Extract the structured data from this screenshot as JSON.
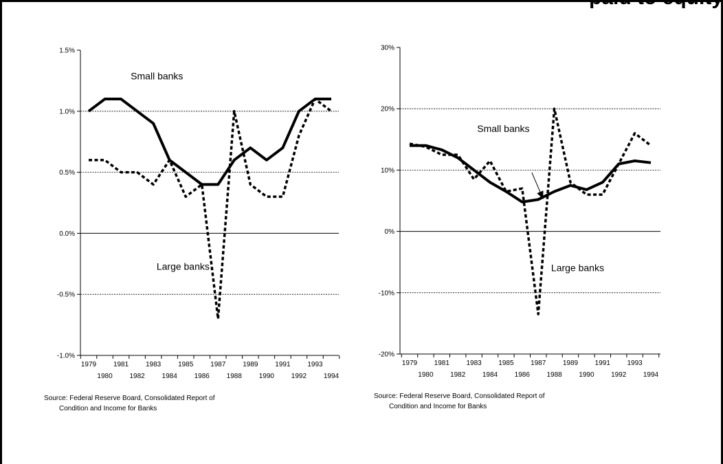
{
  "cut_title": "paid to equity",
  "source_note": {
    "line1": "Source: Federal Reserve Board, Consolidated Report of",
    "line2": "Condition and Income for Banks"
  },
  "chart_data": [
    {
      "type": "line",
      "title": "",
      "xlabel": "",
      "ylabel": "",
      "ylim": [
        -1.0,
        1.5
      ],
      "y_ticks": [
        "-1.0%",
        "-0.5%",
        "0.0%",
        "0.5%",
        "1.0%",
        "1.5%"
      ],
      "y_tick_values": [
        -1.0,
        -0.5,
        0.0,
        0.5,
        1.0,
        1.5
      ],
      "gridlines": {
        "dashed_at": [
          -0.5,
          0.5,
          1.0
        ],
        "solid_at": [
          0.0
        ]
      },
      "x": [
        1979,
        1980,
        1981,
        1982,
        1983,
        1984,
        1985,
        1986,
        1987,
        1988,
        1989,
        1990,
        1991,
        1992,
        1993,
        1994
      ],
      "x_labels_top": [
        "1979",
        "1981",
        "1983",
        "1985",
        "1987",
        "1989",
        "1991",
        "1993"
      ],
      "x_labels_bottom": [
        "1980",
        "1982",
        "1984",
        "1986",
        "1988",
        "1990",
        "1992",
        "1994"
      ],
      "series": [
        {
          "name": "Small banks",
          "style": "solid",
          "values": [
            1.0,
            1.1,
            1.1,
            1.0,
            0.9,
            0.6,
            0.5,
            0.4,
            0.4,
            0.6,
            0.7,
            0.6,
            0.7,
            1.0,
            1.1,
            1.1
          ]
        },
        {
          "name": "Large banks",
          "style": "dotted",
          "values": [
            0.6,
            0.6,
            0.5,
            0.5,
            0.4,
            0.6,
            0.3,
            0.4,
            -0.7,
            1.0,
            0.4,
            0.3,
            0.3,
            0.8,
            1.1,
            1.0
          ]
        }
      ],
      "labels": [
        {
          "text": "Small banks",
          "x": 1981.6,
          "y": 1.26
        },
        {
          "text": "Large banks",
          "x": 1983.2,
          "y": -0.3
        }
      ]
    },
    {
      "type": "line",
      "title": "",
      "xlabel": "",
      "ylabel": "",
      "ylim": [
        -20,
        30
      ],
      "y_ticks": [
        "-20%",
        "-10%",
        "0%",
        "10%",
        "20%",
        "30%"
      ],
      "y_tick_values": [
        -20,
        -10,
        0,
        10,
        20,
        30
      ],
      "gridlines": {
        "dashed_at": [
          -10,
          10,
          20
        ],
        "solid_at": [
          0
        ]
      },
      "x": [
        1979,
        1980,
        1981,
        1982,
        1983,
        1984,
        1985,
        1986,
        1987,
        1988,
        1989,
        1990,
        1991,
        1992,
        1993,
        1994
      ],
      "x_labels_top": [
        "1979",
        "1981",
        "1983",
        "1985",
        "1987",
        "1989",
        "1991",
        "1993"
      ],
      "x_labels_bottom": [
        "1980",
        "1982",
        "1984",
        "1986",
        "1988",
        "1990",
        "1992",
        "1994"
      ],
      "series": [
        {
          "name": "Small banks",
          "style": "solid",
          "values": [
            14,
            14,
            13.3,
            12,
            10,
            8,
            6.5,
            4.8,
            5.2,
            6.5,
            7.5,
            6.8,
            8,
            11,
            11.5,
            11.2
          ]
        },
        {
          "name": "Large banks",
          "style": "dotted",
          "values": [
            14.3,
            13.8,
            12.5,
            12.5,
            8.5,
            11.5,
            6.5,
            7,
            -13.5,
            20,
            8,
            6,
            6,
            11,
            16,
            14
          ]
        }
      ],
      "labels": [
        {
          "text": "Small banks",
          "x": 1983.2,
          "y": 16.2
        },
        {
          "text": "Large banks",
          "x": 1987.8,
          "y": -6.5
        }
      ],
      "annotation": {
        "type": "arrow",
        "from": [
          1986.6,
          9.6
        ],
        "to": [
          1987.3,
          5.3
        ]
      }
    }
  ]
}
